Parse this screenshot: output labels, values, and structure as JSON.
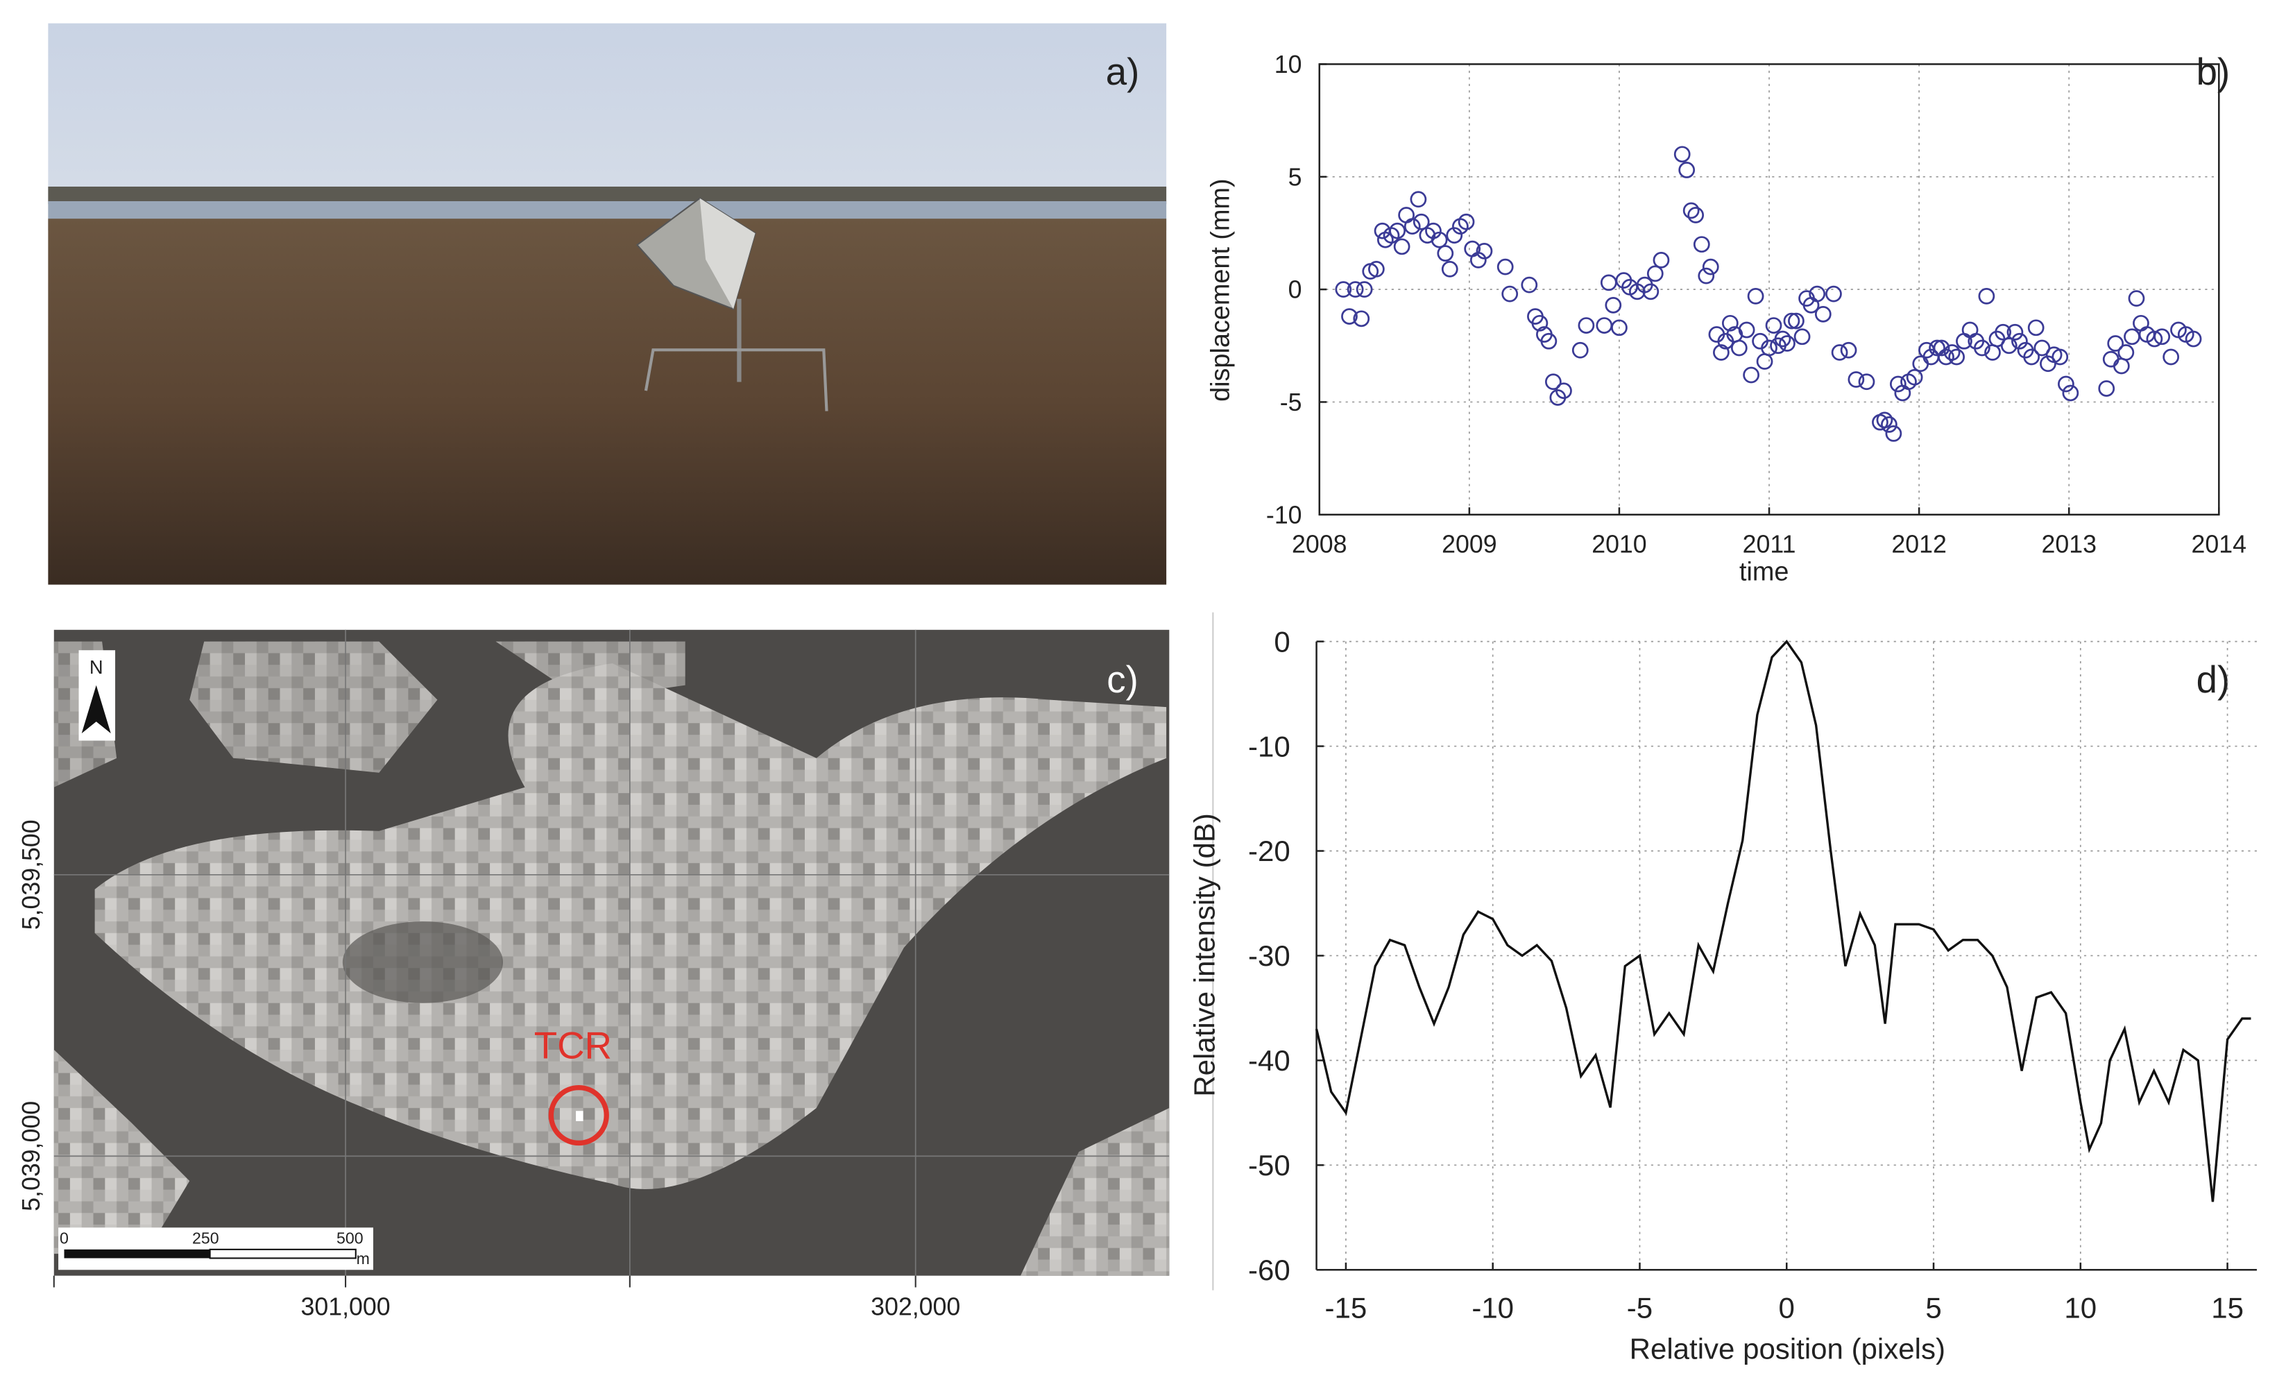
{
  "panel_labels": [
    "a)",
    "b)",
    "c)",
    "d)"
  ],
  "map": {
    "north": "N",
    "marker": "TCR",
    "scale_labels": [
      "0",
      "250",
      "500",
      "m"
    ],
    "x_labels": [
      "301,000",
      "302,000"
    ],
    "y_labels": [
      "5,039,500",
      "5,039,000"
    ]
  },
  "chart_data": [
    {
      "type": "scatter",
      "x_label": "time",
      "y_label": "displacement (mm)",
      "color": "#3b3b96",
      "grid": true,
      "box": true,
      "xlim": [
        2008,
        2014
      ],
      "xticks": [
        2008,
        2009,
        2010,
        2011,
        2012,
        2013,
        2014
      ],
      "ylim": [
        -10,
        10
      ],
      "yticks": [
        -10,
        -5,
        0,
        5,
        10
      ],
      "x": [
        2008.16,
        2008.2,
        2008.24,
        2008.28,
        2008.3,
        2008.34,
        2008.38,
        2008.42,
        2008.44,
        2008.48,
        2008.52,
        2008.55,
        2008.58,
        2008.62,
        2008.66,
        2008.68,
        2008.72,
        2008.76,
        2008.8,
        2008.84,
        2008.87,
        2008.9,
        2008.94,
        2008.98,
        2009.02,
        2009.06,
        2009.1,
        2009.24,
        2009.27,
        2009.4,
        2009.44,
        2009.47,
        2009.5,
        2009.53,
        2009.56,
        2009.59,
        2009.63,
        2009.74,
        2009.78,
        2009.9,
        2009.93,
        2009.96,
        2010.0,
        2010.03,
        2010.07,
        2010.12,
        2010.17,
        2010.21,
        2010.24,
        2010.28,
        2010.42,
        2010.45,
        2010.48,
        2010.51,
        2010.55,
        2010.58,
        2010.61,
        2010.65,
        2010.68,
        2010.71,
        2010.74,
        2010.77,
        2010.8,
        2010.85,
        2010.88,
        2010.91,
        2010.94,
        2010.97,
        2011.0,
        2011.03,
        2011.06,
        2011.09,
        2011.12,
        2011.15,
        2011.18,
        2011.22,
        2011.25,
        2011.28,
        2011.32,
        2011.36,
        2011.43,
        2011.47,
        2011.53,
        2011.58,
        2011.65,
        2011.74,
        2011.77,
        2011.8,
        2011.83,
        2011.86,
        2011.89,
        2011.93,
        2011.97,
        2012.01,
        2012.05,
        2012.08,
        2012.12,
        2012.15,
        2012.18,
        2012.22,
        2012.25,
        2012.3,
        2012.34,
        2012.38,
        2012.42,
        2012.45,
        2012.49,
        2012.52,
        2012.56,
        2012.6,
        2012.64,
        2012.67,
        2012.71,
        2012.75,
        2012.78,
        2012.82,
        2012.86,
        2012.9,
        2012.94,
        2012.98,
        2013.01,
        2013.25,
        2013.28,
        2013.31,
        2013.35,
        2013.38,
        2013.42,
        2013.45,
        2013.48,
        2013.52,
        2013.57,
        2013.62,
        2013.68,
        2013.73,
        2013.78,
        2013.83
      ],
      "values": [
        0,
        -1.2,
        0,
        -1.3,
        0,
        0.8,
        0.9,
        2.6,
        2.2,
        2.4,
        2.6,
        1.9,
        3.3,
        2.8,
        4.0,
        3.0,
        2.4,
        2.6,
        2.2,
        1.6,
        0.9,
        2.4,
        2.8,
        3.0,
        1.8,
        1.3,
        1.7,
        1.0,
        -0.2,
        0.2,
        -1.2,
        -1.5,
        -2.0,
        -2.3,
        -4.1,
        -4.8,
        -4.5,
        -2.7,
        -1.6,
        -1.6,
        0.3,
        -0.7,
        -1.7,
        0.4,
        0.1,
        -0.1,
        0.2,
        -0.1,
        0.7,
        1.3,
        6.0,
        5.3,
        3.5,
        3.3,
        2.0,
        0.6,
        1.0,
        -2.0,
        -2.8,
        -2.3,
        -1.5,
        -2.0,
        -2.6,
        -1.8,
        -3.8,
        -0.3,
        -2.3,
        -3.2,
        -2.6,
        -1.6,
        -2.5,
        -2.2,
        -2.4,
        -1.4,
        -1.4,
        -2.1,
        -0.4,
        -0.7,
        -0.2,
        -1.1,
        -0.2,
        -2.8,
        -2.7,
        -4.0,
        -4.1,
        -5.9,
        -5.8,
        -6.0,
        -6.4,
        -4.2,
        -4.6,
        -4.1,
        -3.9,
        -3.3,
        -2.7,
        -3.0,
        -2.6,
        -2.6,
        -3.0,
        -2.8,
        -3.0,
        -2.3,
        -1.8,
        -2.3,
        -2.6,
        -0.3,
        -2.8,
        -2.2,
        -1.9,
        -2.5,
        -1.9,
        -2.3,
        -2.7,
        -3.0,
        -1.7,
        -2.6,
        -3.3,
        -2.9,
        -3.0,
        -4.2,
        -4.6,
        -4.4,
        -3.1,
        -2.4,
        -3.4,
        -2.8,
        -2.1,
        -0.4,
        -1.5,
        -2.0,
        -2.2,
        -2.1,
        -3.0,
        -1.8,
        -2.0,
        -2.2
      ]
    },
    {
      "type": "line",
      "x_label": "Relative position (pixels)",
      "y_label": "Relative intensity (dB)",
      "color": "#111111",
      "grid": true,
      "box": false,
      "xlim": [
        -16,
        16
      ],
      "xticks": [
        -15,
        -10,
        -5,
        0,
        5,
        10,
        15
      ],
      "ylim": [
        -60,
        0
      ],
      "yticks": [
        -60,
        -50,
        -40,
        -30,
        -20,
        -10,
        0
      ],
      "x": [
        -16,
        -15.5,
        -15,
        -14.5,
        -14,
        -13.5,
        -13,
        -12.5,
        -12,
        -11.5,
        -11,
        -10.5,
        -10,
        -9.5,
        -9,
        -8.5,
        -8,
        -7.5,
        -7,
        -6.5,
        -6,
        -5.5,
        -5,
        -4.5,
        -4,
        -3.5,
        -3,
        -2.5,
        -2,
        -1.5,
        -1,
        -0.5,
        0,
        0.5,
        1,
        1.5,
        2,
        2.5,
        3,
        3.35,
        3.7,
        4.5,
        5,
        5.5,
        6,
        6.5,
        7,
        7.5,
        8,
        8.5,
        9,
        9.5,
        10,
        10.3,
        10.7,
        11,
        11.5,
        12,
        12.5,
        13,
        13.5,
        14,
        14.5,
        15,
        15.5,
        15.8
      ],
      "values": [
        -37,
        -43,
        -45,
        -38,
        -31,
        -28.5,
        -29,
        -33,
        -36.5,
        -33,
        -28,
        -25.8,
        -26.5,
        -29,
        -30,
        -29,
        -30.5,
        -35,
        -41.5,
        -39.5,
        -44.5,
        -31,
        -30,
        -37.5,
        -35.5,
        -37.5,
        -29,
        -31.5,
        -25,
        -19,
        -7,
        -1.5,
        0,
        -2,
        -8,
        -20,
        -31,
        -26,
        -29,
        -36.5,
        -27,
        -27,
        -27.5,
        -29.5,
        -28.5,
        -28.5,
        -30,
        -33,
        -41,
        -34,
        -33.5,
        -35.5,
        -44,
        -48.5,
        -46,
        -40,
        -37,
        -44,
        -41,
        -44,
        -39,
        -40,
        -53.5,
        -38,
        -36,
        -36
      ]
    }
  ]
}
